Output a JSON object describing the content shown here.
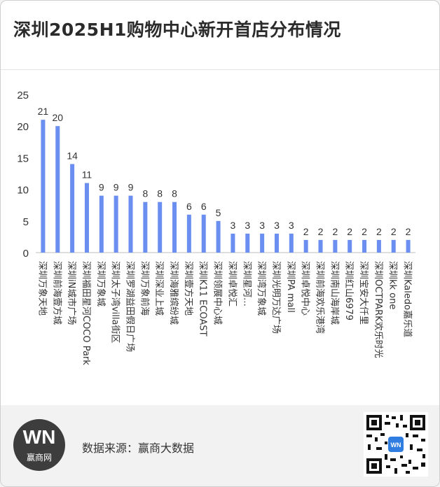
{
  "title": "深圳2025H1购物中心新开首店分布情况",
  "footer": {
    "logo_mark": "WN",
    "logo_text": "赢商网",
    "source": "数据来源：赢商大数据"
  },
  "colors": {
    "bar": "#6b8ff0",
    "axis": "#bdbdbd",
    "text": "#333333"
  },
  "chart_data": {
    "type": "bar",
    "title": "",
    "xlabel": "",
    "ylabel": "",
    "ylim": [
      0,
      25
    ],
    "yticks": [
      0,
      5,
      10,
      15,
      20,
      25
    ],
    "grid": false,
    "categories": [
      "深圳万象天地",
      "深圳前海壹方城",
      "深圳iN城市广场",
      "深圳福田星河COCO Park",
      "深圳万象城",
      "深圳太子湾villa街区",
      "深圳罗湖益田假日广场",
      "深圳万象前海",
      "深圳深业上城",
      "深圳海雅缤纷城",
      "深圳壹方天地",
      "深圳K11 ECOAST",
      "深圳领展中心城",
      "深圳卓悦汇",
      "深圳星河…",
      "深圳湾万象城",
      "深圳光明万达广场",
      "深圳PA mall",
      "深圳卓悦中心",
      "深圳前海欢乐港湾",
      "深圳南山海岸城",
      "深圳红山6979",
      "深圳宝安大仟里",
      "深圳OCTPARK欢乐时光",
      "深圳kk one",
      "深圳Kaledo嘉乐道"
    ],
    "values": [
      21,
      20,
      14,
      11,
      9,
      9,
      9,
      8,
      8,
      8,
      6,
      6,
      5,
      3,
      3,
      3,
      3,
      3,
      2,
      2,
      2,
      2,
      2,
      2,
      2,
      2
    ]
  }
}
